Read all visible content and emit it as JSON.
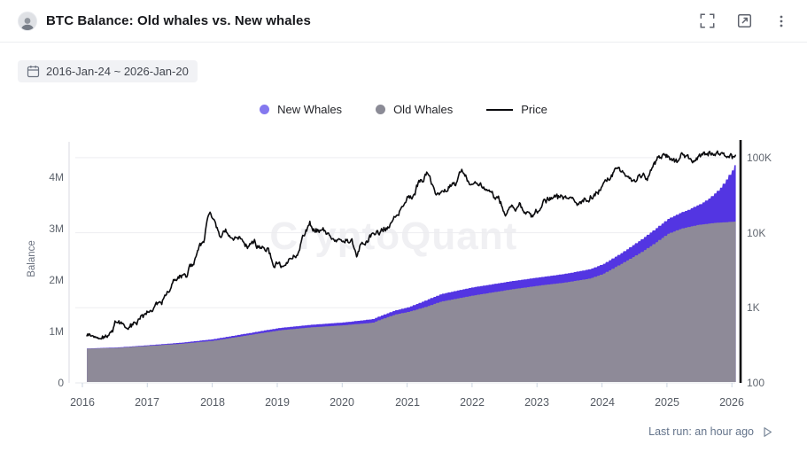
{
  "header": {
    "title": "BTC Balance: Old whales vs. New whales",
    "actions": [
      {
        "icon": "fullscreen-icon"
      },
      {
        "icon": "external-link-icon"
      },
      {
        "icon": "kebab-menu-icon"
      }
    ]
  },
  "date_filter": {
    "icon": "calendar-icon",
    "label": "2016-Jan-24 ~ 2026-Jan-20"
  },
  "legend": {
    "items": [
      {
        "label": "New Whales",
        "swatch": "dot",
        "color": "#8478ef"
      },
      {
        "label": "Old Whales",
        "swatch": "dot",
        "color": "#8b8b96"
      },
      {
        "label": "Price",
        "swatch": "line",
        "color": "#0b0b0e"
      }
    ]
  },
  "watermark": {
    "text": "CryptoQuant"
  },
  "footer": {
    "last_run_label": "Last run: an hour ago",
    "icon": "run-play-icon"
  },
  "chart_data": {
    "type": "area",
    "title": "BTC Balance: Old whales vs. New whales",
    "ylabel_left": "Balance",
    "y_left_unit": "BTC (millions)",
    "y_left_ticks": [
      {
        "label": "0",
        "value": 0
      },
      {
        "label": "1M",
        "value": 1
      },
      {
        "label": "2M",
        "value": 2
      },
      {
        "label": "3M",
        "value": 3
      },
      {
        "label": "4M",
        "value": 4
      }
    ],
    "y_right_scale": "log",
    "y_right_unit": "USD",
    "y_right_ticks": [
      {
        "label": "100",
        "value": 100
      },
      {
        "label": "1K",
        "value": 1000
      },
      {
        "label": "10K",
        "value": 10000
      },
      {
        "label": "100K",
        "value": 100000
      }
    ],
    "x_ticks": [
      2016,
      2017,
      2018,
      2019,
      2020,
      2021,
      2022,
      2023,
      2024,
      2025,
      2026
    ],
    "x_range": [
      2016.07,
      2026.06
    ],
    "grid": "horizontal-only",
    "legend_position": "top-center",
    "colors": {
      "grid": "#ededf0",
      "axis_left": "#d9dae0",
      "axis_right": "#0a0a0e",
      "tick": "#cbd5e1"
    },
    "series": [
      {
        "name": "New Whales",
        "type": "area",
        "stack": true,
        "color": "#5335e2",
        "unit": "M BTC",
        "points": [
          [
            2016.07,
            0.005
          ],
          [
            2017.0,
            0.012
          ],
          [
            2018.0,
            0.03
          ],
          [
            2019.0,
            0.045
          ],
          [
            2020.0,
            0.055
          ],
          [
            2020.8,
            0.08
          ],
          [
            2021.0,
            0.09
          ],
          [
            2021.3,
            0.13
          ],
          [
            2021.6,
            0.15
          ],
          [
            2022.0,
            0.16
          ],
          [
            2022.5,
            0.16
          ],
          [
            2023.0,
            0.16
          ],
          [
            2023.5,
            0.17
          ],
          [
            2024.0,
            0.19
          ],
          [
            2024.3,
            0.21
          ],
          [
            2024.6,
            0.25
          ],
          [
            2024.9,
            0.28
          ],
          [
            2025.1,
            0.3
          ],
          [
            2025.3,
            0.33
          ],
          [
            2025.5,
            0.4
          ],
          [
            2025.65,
            0.5
          ],
          [
            2025.8,
            0.66
          ],
          [
            2025.9,
            0.83
          ],
          [
            2026.0,
            1.02
          ],
          [
            2026.06,
            1.15
          ]
        ]
      },
      {
        "name": "Old Whales",
        "type": "area",
        "stack": true,
        "color": "#8e8a98",
        "unit": "M BTC",
        "points": [
          [
            2016.07,
            0.665
          ],
          [
            2016.5,
            0.68
          ],
          [
            2017.0,
            0.72
          ],
          [
            2017.5,
            0.76
          ],
          [
            2018.0,
            0.82
          ],
          [
            2018.5,
            0.92
          ],
          [
            2019.0,
            1.02
          ],
          [
            2019.5,
            1.08
          ],
          [
            2020.0,
            1.12
          ],
          [
            2020.45,
            1.17
          ],
          [
            2020.55,
            1.22
          ],
          [
            2020.8,
            1.33
          ],
          [
            2021.0,
            1.38
          ],
          [
            2021.25,
            1.47
          ],
          [
            2021.5,
            1.58
          ],
          [
            2021.75,
            1.64
          ],
          [
            2022.0,
            1.7
          ],
          [
            2022.3,
            1.76
          ],
          [
            2022.6,
            1.82
          ],
          [
            2023.0,
            1.89
          ],
          [
            2023.4,
            1.95
          ],
          [
            2023.8,
            2.03
          ],
          [
            2024.0,
            2.12
          ],
          [
            2024.3,
            2.33
          ],
          [
            2024.6,
            2.55
          ],
          [
            2024.8,
            2.72
          ],
          [
            2025.0,
            2.9
          ],
          [
            2025.2,
            3.0
          ],
          [
            2025.45,
            3.07
          ],
          [
            2025.7,
            3.11
          ],
          [
            2026.06,
            3.14
          ]
        ]
      },
      {
        "name": "Price",
        "type": "line",
        "axis": "right",
        "color": "#0b0b0e",
        "unit": "USD",
        "points": [
          [
            2016.07,
            430
          ],
          [
            2016.2,
            420
          ],
          [
            2016.45,
            450
          ],
          [
            2016.55,
            680
          ],
          [
            2016.75,
            640
          ],
          [
            2016.9,
            740
          ],
          [
            2017.0,
            970
          ],
          [
            2017.2,
            1150
          ],
          [
            2017.45,
            2400
          ],
          [
            2017.6,
            2700
          ],
          [
            2017.75,
            4300
          ],
          [
            2017.88,
            7500
          ],
          [
            2017.96,
            19000
          ],
          [
            2018.04,
            15000
          ],
          [
            2018.12,
            8300
          ],
          [
            2018.2,
            11000
          ],
          [
            2018.3,
            8000
          ],
          [
            2018.45,
            9000
          ],
          [
            2018.55,
            6600
          ],
          [
            2018.7,
            6400
          ],
          [
            2018.85,
            6400
          ],
          [
            2018.92,
            4000
          ],
          [
            2019.0,
            3750
          ],
          [
            2019.12,
            3600
          ],
          [
            2019.3,
            5200
          ],
          [
            2019.5,
            12500
          ],
          [
            2019.55,
            10800
          ],
          [
            2019.7,
            10000
          ],
          [
            2019.85,
            8000
          ],
          [
            2020.0,
            7200
          ],
          [
            2020.15,
            9000
          ],
          [
            2020.22,
            5000
          ],
          [
            2020.4,
            8800
          ],
          [
            2020.55,
            9200
          ],
          [
            2020.7,
            11500
          ],
          [
            2020.85,
            15500
          ],
          [
            2021.0,
            29000
          ],
          [
            2021.1,
            33000
          ],
          [
            2021.2,
            50000
          ],
          [
            2021.3,
            62000
          ],
          [
            2021.42,
            37000
          ],
          [
            2021.55,
            33000
          ],
          [
            2021.65,
            42000
          ],
          [
            2021.75,
            48000
          ],
          [
            2021.87,
            67000
          ],
          [
            2021.95,
            50000
          ],
          [
            2022.05,
            42000
          ],
          [
            2022.2,
            40000
          ],
          [
            2022.35,
            30000
          ],
          [
            2022.5,
            20000
          ],
          [
            2022.65,
            22000
          ],
          [
            2022.8,
            19500
          ],
          [
            2022.92,
            16000
          ],
          [
            2023.05,
            21000
          ],
          [
            2023.2,
            28000
          ],
          [
            2023.35,
            27000
          ],
          [
            2023.5,
            30000
          ],
          [
            2023.65,
            26000
          ],
          [
            2023.8,
            28000
          ],
          [
            2023.92,
            38000
          ],
          [
            2024.0,
            44000
          ],
          [
            2024.15,
            62000
          ],
          [
            2024.22,
            70000
          ],
          [
            2024.35,
            64000
          ],
          [
            2024.5,
            58000
          ],
          [
            2024.62,
            65000
          ],
          [
            2024.72,
            62000
          ],
          [
            2024.85,
            92000
          ],
          [
            2024.95,
            100000
          ],
          [
            2025.05,
            95000
          ],
          [
            2025.12,
            82000
          ],
          [
            2025.25,
            95000
          ],
          [
            2025.35,
            84000
          ],
          [
            2025.5,
            107000
          ],
          [
            2025.6,
            110000
          ],
          [
            2025.72,
            118000
          ],
          [
            2025.8,
            112000
          ],
          [
            2025.9,
            105000
          ],
          [
            2026.0,
            92000
          ],
          [
            2026.06,
            98000
          ]
        ]
      }
    ]
  }
}
